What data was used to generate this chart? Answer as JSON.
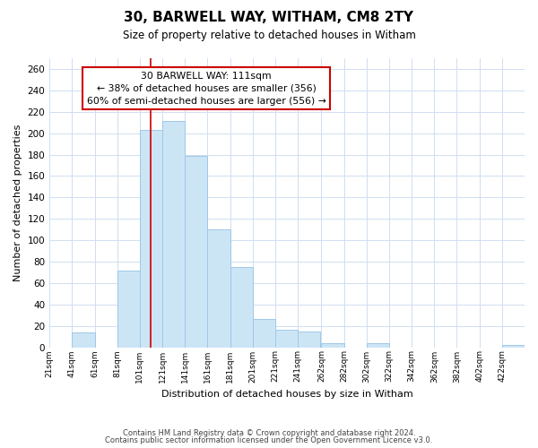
{
  "title": "30, BARWELL WAY, WITHAM, CM8 2TY",
  "subtitle": "Size of property relative to detached houses in Witham",
  "xlabel": "Distribution of detached houses by size in Witham",
  "ylabel": "Number of detached properties",
  "bar_color": "#cce5f5",
  "bar_edge_color": "#9fc8e8",
  "vline_color": "#cc0000",
  "vline_x": 111,
  "annotation_title": "30 BARWELL WAY: 111sqm",
  "annotation_line1": "← 38% of detached houses are smaller (356)",
  "annotation_line2": "60% of semi-detached houses are larger (556) →",
  "annotation_box_color": "#ffffff",
  "annotation_box_edge": "#cc0000",
  "footer_line1": "Contains HM Land Registry data © Crown copyright and database right 2024.",
  "footer_line2": "Contains public sector information licensed under the Open Government Licence v3.0.",
  "bin_starts": [
    21,
    41,
    61,
    81,
    101,
    121,
    141,
    161,
    181,
    201,
    221,
    241,
    262,
    282,
    302,
    322,
    342,
    362,
    382,
    402,
    422
  ],
  "bin_labels": [
    "21sqm",
    "41sqm",
    "61sqm",
    "81sqm",
    "101sqm",
    "121sqm",
    "141sqm",
    "161sqm",
    "181sqm",
    "201sqm",
    "221sqm",
    "241sqm",
    "262sqm",
    "282sqm",
    "302sqm",
    "322sqm",
    "342sqm",
    "362sqm",
    "382sqm",
    "402sqm",
    "422sqm"
  ],
  "counts": [
    0,
    14,
    0,
    72,
    203,
    211,
    179,
    110,
    75,
    26,
    16,
    15,
    4,
    0,
    4,
    0,
    0,
    0,
    0,
    0,
    2
  ],
  "bin_width": 20,
  "xlim_left": 21,
  "xlim_right": 442,
  "ylim": [
    0,
    270
  ],
  "yticks": [
    0,
    20,
    40,
    60,
    80,
    100,
    120,
    140,
    160,
    180,
    200,
    220,
    240,
    260
  ],
  "background_color": "#ffffff",
  "grid_color": "#d0dff0",
  "figsize": [
    6.0,
    5.0
  ],
  "dpi": 100
}
